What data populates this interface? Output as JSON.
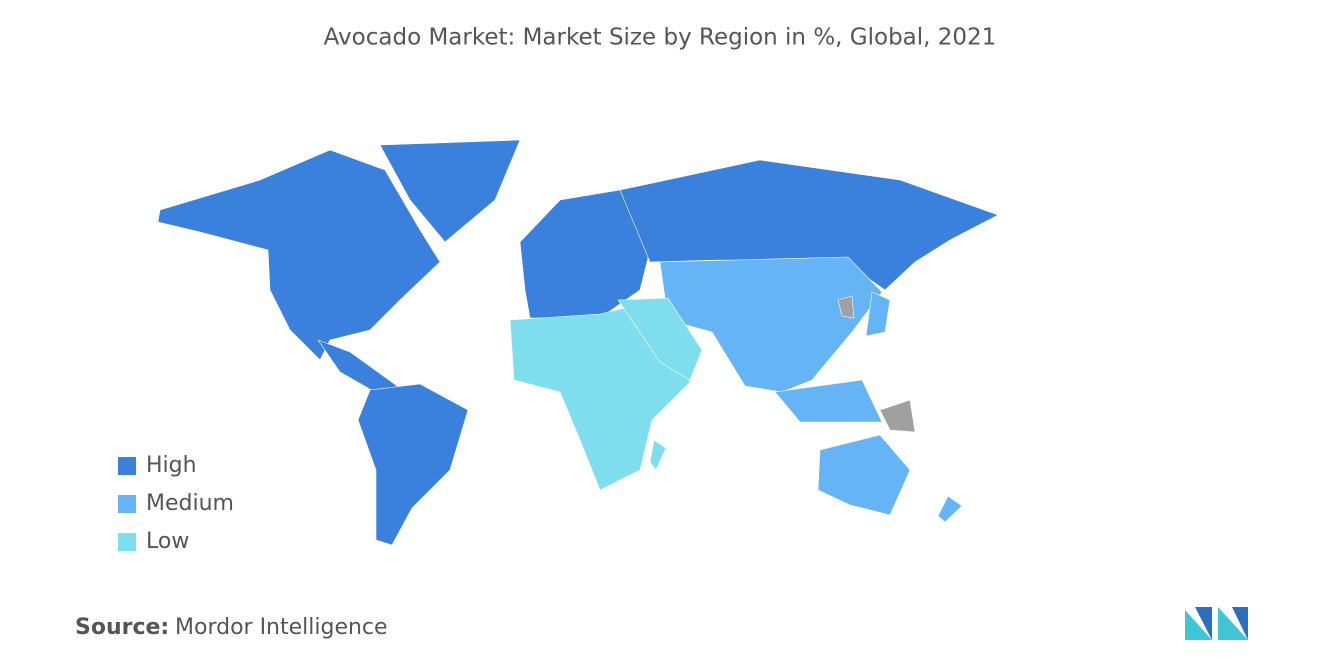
{
  "chart_data": {
    "type": "choropleth",
    "title": "Avocado Market: Market Size by Region in %, Global, 2021",
    "legend": [
      {
        "name": "High",
        "color": "#3a80dd"
      },
      {
        "name": "Medium",
        "color": "#64b4f6"
      },
      {
        "name": "Low",
        "color": "#7fdeee"
      }
    ],
    "no_data_color": "#a0a0a0",
    "source_label": "Source:",
    "source": "Mordor Intelligence"
  }
}
